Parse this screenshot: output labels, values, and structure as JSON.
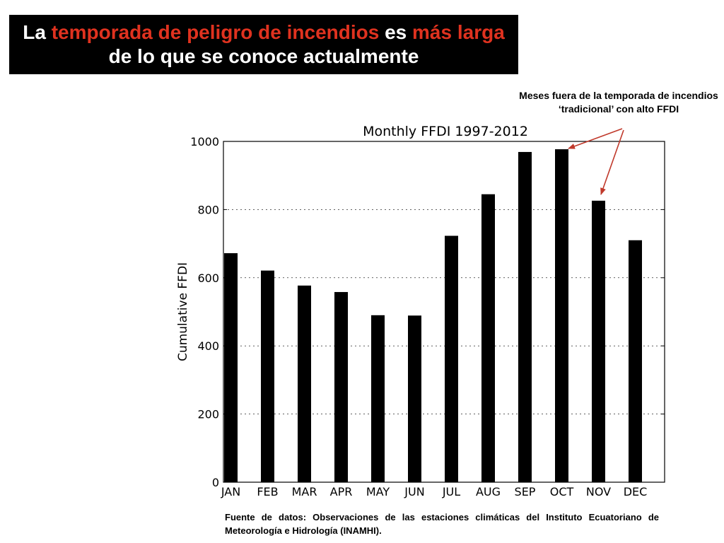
{
  "slide": {
    "title_parts": [
      {
        "text": "La ",
        "highlight": false
      },
      {
        "text": "temporada de peligro de incendios",
        "highlight": true
      },
      {
        "text": " es ",
        "highlight": false
      },
      {
        "text": "más larga",
        "highlight": true
      },
      {
        "text": " de lo que se conoce actualmente",
        "highlight": false
      }
    ],
    "annotation": "Meses fuera de la temporada de incendios ‘tradicional’ con alto FFDI",
    "source": "Fuente de datos: Observaciones de las estaciones climáticas del Instituto Ecuatoriano de Meteorología e Hidrología (INAMHI)."
  },
  "colors": {
    "title_background": "#000000",
    "title_text": "#ffffff",
    "highlight": "#e0321f",
    "bars": "#000000",
    "arrows": "#c0392b"
  },
  "chart_data": {
    "type": "bar",
    "title": "Monthly FFDI 1997-2012",
    "xlabel": "",
    "ylabel": "Cumulative FFDI",
    "categories": [
      "JAN",
      "FEB",
      "MAR",
      "APR",
      "MAY",
      "JUN",
      "JUL",
      "AUG",
      "SEP",
      "OCT",
      "NOV",
      "DEC"
    ],
    "values": [
      672,
      621,
      577,
      558,
      490,
      489,
      723,
      845,
      969,
      977,
      826,
      710
    ],
    "ylim": [
      0,
      1000
    ],
    "yticks": [
      0,
      200,
      400,
      600,
      800,
      1000
    ],
    "grid": "horizontal dashed",
    "highlighted_categories": [
      "OCT",
      "NOV"
    ]
  }
}
